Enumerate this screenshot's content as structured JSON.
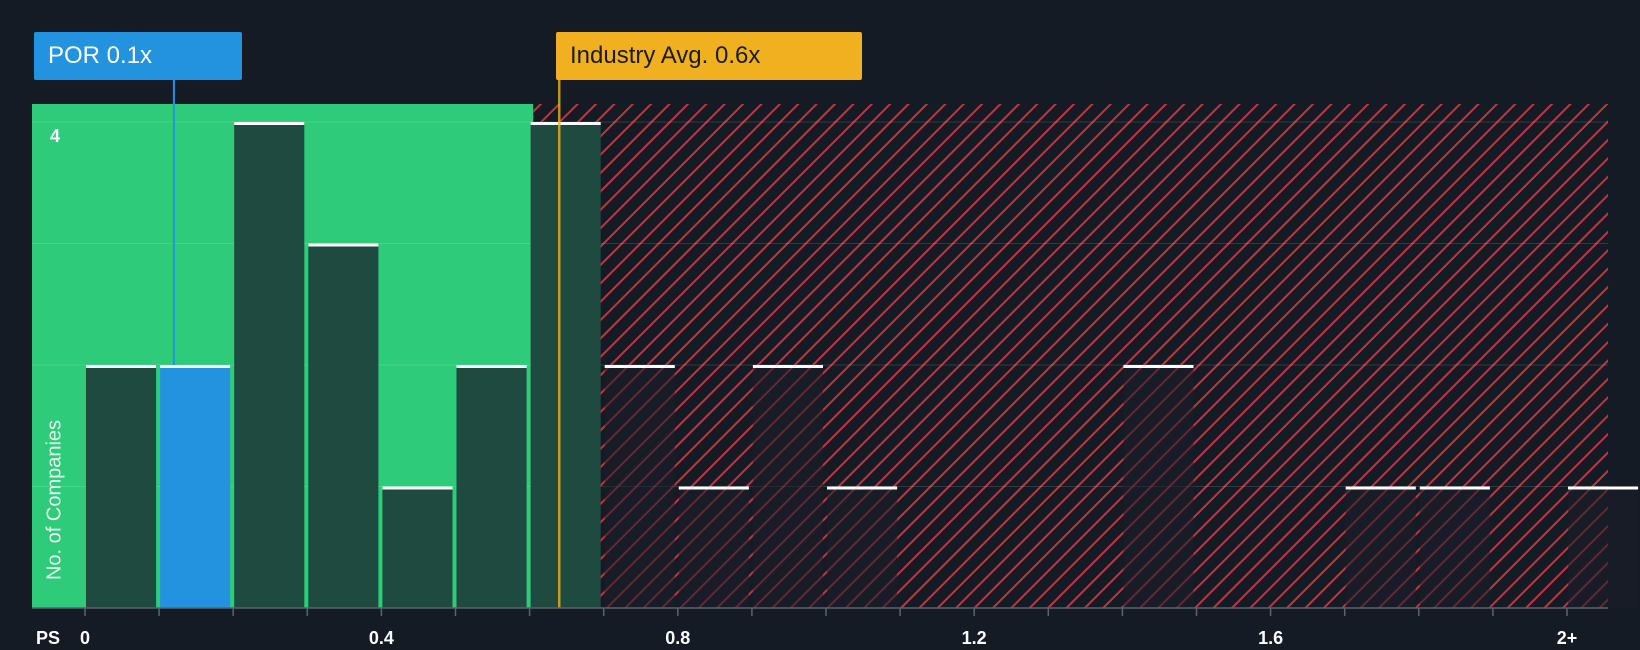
{
  "colors": {
    "background": "#151b24",
    "fair_zone": "#2ecc7a",
    "above_zone": "#c0353f",
    "bar_dark": "#1e4a3f",
    "bar_highlight": "#2393e0",
    "por_callout": "#2393e0",
    "industry_callout": "#f0b020"
  },
  "callouts": {
    "company": "POR 0.1x",
    "industry": "Industry Avg. 0.6x"
  },
  "chart_data": {
    "type": "bar",
    "title": "",
    "xlabel": "PS",
    "ylabel": "No. of Companies",
    "x_ticks": [
      "0",
      "0.4",
      "0.8",
      "1.2",
      "1.6",
      "2+"
    ],
    "y_ticks": [
      "4"
    ],
    "xlim": [
      0,
      2.05
    ],
    "ylim": [
      0,
      4.15
    ],
    "bin_width": 0.1,
    "bins": [
      {
        "start": 0.0,
        "count": 2
      },
      {
        "start": 0.1,
        "count": 2,
        "highlight": true
      },
      {
        "start": 0.2,
        "count": 4
      },
      {
        "start": 0.3,
        "count": 3
      },
      {
        "start": 0.4,
        "count": 1
      },
      {
        "start": 0.5,
        "count": 2
      },
      {
        "start": 0.6,
        "count": 4
      },
      {
        "start": 0.7,
        "count": 2
      },
      {
        "start": 0.8,
        "count": 1
      },
      {
        "start": 0.9,
        "count": 2
      },
      {
        "start": 1.0,
        "count": 1
      },
      {
        "start": 1.4,
        "count": 2
      },
      {
        "start": 1.7,
        "count": 1
      },
      {
        "start": 1.8,
        "count": 1
      },
      {
        "start": 2.0,
        "count": 1
      }
    ],
    "company_value": 0.12,
    "industry_avg": 0.64,
    "fair_zone_end": 0.605
  }
}
